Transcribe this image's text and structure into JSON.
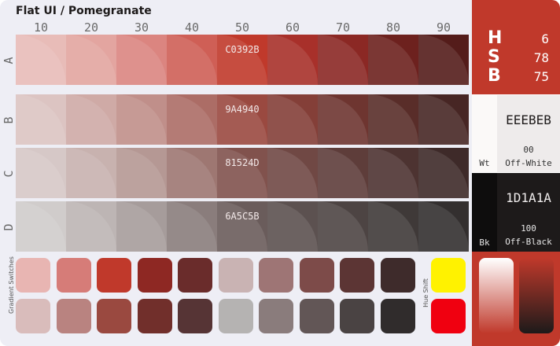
{
  "title": "Flat UI / Pomegranate",
  "columns": [
    "10",
    "20",
    "30",
    "40",
    "50",
    "60",
    "70",
    "80",
    "90"
  ],
  "rows": [
    {
      "label": "A",
      "code": "C0392B",
      "colors": [
        "#e8bcb8",
        "#e3a5a0",
        "#db8580",
        "#cf5f56",
        "#c0392b",
        "#a8302a",
        "#8b2824",
        "#6d211e",
        "#541c1a"
      ]
    },
    {
      "label": "B",
      "code": "9A4940",
      "colors": [
        "#dcc4c2",
        "#cfaaa6",
        "#c08f8a",
        "#ac6d66",
        "#9a4940",
        "#843f38",
        "#6e3530",
        "#592d29",
        "#472624"
      ]
    },
    {
      "label": "C",
      "code": "81524D",
      "colors": [
        "#d6c8c7",
        "#c8b2af",
        "#b59894",
        "#9e7772",
        "#81524d",
        "#704844",
        "#5e3d3a",
        "#4d3331",
        "#3e2a29"
      ]
    },
    {
      "label": "D",
      "code": "6A5C5B",
      "colors": [
        "#d0cccb",
        "#bdb5b4",
        "#a69c9b",
        "#8a7d7c",
        "#6a5c5b",
        "#5c5150",
        "#4d4443",
        "#3f3938",
        "#332f2f"
      ]
    }
  ],
  "gradient_label": "Gradient Switches",
  "hue_label": "Hue Shift",
  "switches_top": [
    "#e8b5b2",
    "#d67c78",
    "#c0392b",
    "#8e2823",
    "#6a2c2b",
    "#c9b3b3",
    "#9e7575",
    "#7d4b49",
    "#5c3534",
    "#3e2b2b"
  ],
  "switches_bottom": [
    "#d9bcbb",
    "#b98380",
    "#9a4940",
    "#712f2b",
    "#563435",
    "#b5b3b2",
    "#8a7c7c",
    "#625656",
    "#4a4343",
    "#302c2c"
  ],
  "hue_colors": [
    "#fff200",
    "#f00010"
  ],
  "hsb": [
    {
      "letter": "H",
      "value": "6"
    },
    {
      "letter": "S",
      "value": "78"
    },
    {
      "letter": "B",
      "value": "75"
    }
  ],
  "white": {
    "short": "Wt",
    "code": "EEEBEB",
    "number": "00",
    "name": "Off-White"
  },
  "black": {
    "short": "Bk",
    "code": "1D1A1A",
    "number": "100",
    "name": "Off-Black"
  },
  "accent": "#c0392b"
}
